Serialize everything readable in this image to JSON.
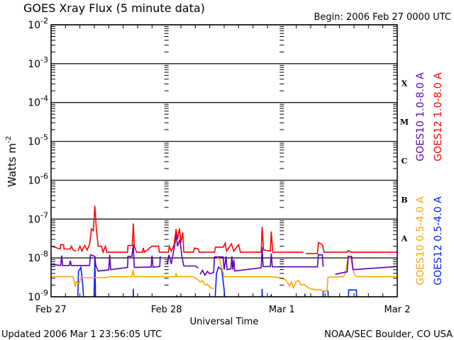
{
  "chart_data": {
    "type": "line",
    "title": "GOES Xray Flux (5 minute data)",
    "begin_label": "Begin:  2006 Feb 27 0000 UTC",
    "xlabel": "Universal Time",
    "ylabel": "Watts m",
    "ylabel_exponent": "-2",
    "y_scale": "log",
    "ylim": [
      1e-09,
      0.01
    ],
    "xlim_hours": [
      0,
      72
    ],
    "grid": "horizontal lines at each decade",
    "x_ticks": [
      {
        "hour": 0,
        "label": "Feb 27"
      },
      {
        "hour": 24,
        "label": "Feb 28"
      },
      {
        "hour": 48,
        "label": "Mar 1"
      },
      {
        "hour": 72,
        "label": "Mar 2"
      }
    ],
    "y_ticks": [
      {
        "value": 0.01,
        "base": "10",
        "exp": "-2"
      },
      {
        "value": 0.001,
        "base": "10",
        "exp": "-3"
      },
      {
        "value": 0.0001,
        "base": "10",
        "exp": "-4"
      },
      {
        "value": 1e-05,
        "base": "10",
        "exp": "-5"
      },
      {
        "value": 1e-06,
        "base": "10",
        "exp": "-6"
      },
      {
        "value": 1e-07,
        "base": "10",
        "exp": "-7"
      },
      {
        "value": 1e-08,
        "base": "10",
        "exp": "-8"
      },
      {
        "value": 1e-09,
        "base": "10",
        "exp": "-9"
      }
    ],
    "flare_classes": [
      {
        "label": "X",
        "low": 0.0001
      },
      {
        "label": "M",
        "low": 1e-05
      },
      {
        "label": "C",
        "low": 1e-06
      },
      {
        "label": "B",
        "low": 1e-07
      },
      {
        "label": "A",
        "low": 1e-08
      }
    ],
    "series": [
      {
        "name": "GOES12 1.0-8.0 A",
        "color": "#ff0000",
        "points": [
          [
            0,
            2e-08
          ],
          [
            1.9,
            1.7e-08
          ],
          [
            2,
            2.2e-08
          ],
          [
            2.6,
            2.2e-08
          ],
          [
            2.7,
            1.7e-08
          ],
          [
            4,
            1.7e-08
          ],
          [
            4.2,
            2e-08
          ],
          [
            4.6,
            1.6e-08
          ],
          [
            5.2,
            1.5e-08
          ],
          null,
          [
            5.6,
            1.5e-08
          ],
          [
            6,
            2e-08
          ],
          [
            6.4,
            1.5e-08
          ],
          [
            7,
            2.1e-08
          ],
          [
            7.5,
            1.6e-08
          ],
          [
            8,
            2.2e-08
          ],
          [
            8.4,
            5.6e-08
          ],
          [
            8.8,
            5e-08
          ],
          [
            9.1,
            2.2e-07
          ],
          [
            9.4,
            6e-08
          ],
          [
            9.8,
            2e-08
          ],
          [
            10.5,
            2e-08
          ],
          [
            10.8,
            1.4e-08
          ],
          [
            11.3,
            2e-08
          ],
          [
            11.6,
            1.4e-08
          ],
          [
            15.9,
            1.4e-08
          ],
          [
            16,
            2.1e-08
          ],
          [
            16.9,
            2.1e-08
          ],
          [
            17.1,
            7.7e-08
          ],
          [
            17.3,
            2e-08
          ],
          [
            17.8,
            1.4e-08
          ],
          [
            19,
            1.4e-08
          ],
          [
            19.2,
            1.8e-08
          ],
          [
            19.4,
            1.4e-08
          ],
          [
            21,
            2e-08
          ],
          [
            22.4,
            2e-08
          ],
          [
            22.5,
            1.4e-08
          ],
          [
            24.4,
            1.4e-08
          ],
          [
            24.6,
            2e-08
          ],
          [
            25,
            1.5e-08
          ],
          [
            25.6,
            2.2e-08
          ],
          [
            26,
            5.5e-08
          ],
          [
            26.3,
            3e-08
          ],
          [
            26.7,
            5.8e-08
          ],
          [
            27,
            2.5e-08
          ],
          [
            27.4,
            4.5e-08
          ],
          [
            27.6,
            1.4e-08
          ],
          [
            29.6,
            1.4e-08
          ],
          [
            29.8,
            1.8e-08
          ],
          [
            30.6,
            1.7e-08
          ],
          [
            30.8,
            1.4e-08
          ],
          [
            34,
            1.4e-08
          ],
          [
            34.2,
            1.9e-08
          ],
          [
            35.8,
            1.9e-08
          ],
          [
            36.2,
            2.4e-08
          ],
          [
            36.5,
            1.5e-08
          ],
          [
            37.5,
            2.3e-08
          ],
          [
            38,
            1.5e-08
          ],
          [
            39,
            2.2e-08
          ],
          [
            39.4,
            1.4e-08
          ],
          [
            43.7,
            1.4e-08
          ],
          [
            43.9,
            6.3e-08
          ],
          [
            44.2,
            1.6e-08
          ],
          [
            45.6,
            1.5e-08
          ],
          [
            45.8,
            4.8e-08
          ],
          [
            46.1,
            1.4e-08
          ],
          [
            52.5,
            1.4e-08
          ],
          null,
          [
            53,
            1.3e-08
          ],
          [
            55.4,
            1.3e-08
          ],
          [
            55.6,
            2.5e-08
          ],
          [
            56.4,
            2.2e-08
          ],
          [
            56.8,
            1.4e-08
          ],
          [
            61.6,
            1.4e-08
          ],
          [
            61.8,
            1.55e-08
          ],
          [
            62.4,
            1.4e-08
          ],
          [
            72,
            1.4e-08
          ]
        ]
      },
      {
        "name": "GOES10 1.0-8.0 A",
        "color": "#5b00b7",
        "points": [
          [
            0,
            6.8e-09
          ],
          [
            2,
            6.4e-09
          ],
          [
            2.2,
            1.15e-08
          ],
          [
            2.4,
            6.4e-09
          ],
          [
            3.8,
            6.4e-09
          ],
          [
            4,
            8.5e-09
          ],
          [
            4.2,
            6.4e-09
          ],
          [
            8,
            6.4e-09
          ],
          [
            8.2,
            1.2e-08
          ],
          [
            8.6,
            1.15e-08
          ],
          [
            9.1,
            1.1e-08
          ],
          [
            9.3,
            6.4e-09
          ],
          [
            9.8,
            4.6e-09
          ],
          [
            12,
            4.9e-09
          ],
          [
            12.2,
            1.2e-08
          ],
          [
            12.4,
            5e-09
          ],
          [
            15.9,
            5.7e-09
          ],
          [
            16,
            1.1e-08
          ],
          [
            16.8,
            1.1e-08
          ],
          [
            17.1,
            2.2e-08
          ],
          [
            17.3,
            5.7e-09
          ],
          [
            20.8,
            5.8e-09
          ],
          [
            21,
            1.15e-08
          ],
          [
            21.2,
            5.8e-09
          ],
          [
            22.6,
            6e-09
          ],
          [
            22.7,
            1.1e-08
          ],
          null,
          [
            24.2,
            7e-09
          ],
          [
            24.5,
            1.2e-08
          ],
          [
            25,
            7e-09
          ],
          [
            25.8,
            2.5e-08
          ],
          [
            26,
            4.1e-08
          ],
          [
            26.3,
            2e-08
          ],
          [
            26.8,
            3e-08
          ],
          [
            27.2,
            1.1e-08
          ],
          [
            27.6,
            6.2e-09
          ],
          [
            30,
            6.2e-09
          ],
          [
            30.6,
            5.5e-09
          ],
          null,
          [
            31,
            3.8e-09
          ],
          [
            31.5,
            4.8e-09
          ],
          [
            32,
            3.6e-09
          ],
          [
            32.5,
            4.5e-09
          ],
          [
            33,
            3.9e-09
          ],
          [
            33.8,
            4.2e-09
          ],
          [
            34,
            1.06e-08
          ],
          [
            35.8,
            1.06e-08
          ],
          [
            36,
            5e-09
          ],
          [
            36.4,
            1.1e-08
          ],
          [
            36.6,
            5e-09
          ],
          [
            37.4,
            5.2e-09
          ],
          [
            37.6,
            1.1e-08
          ],
          [
            37.8,
            5e-09
          ],
          [
            38,
            9e-09
          ],
          [
            38.2,
            4.6e-09
          ],
          [
            43.7,
            5.6e-09
          ],
          [
            43.9,
            1.9e-08
          ],
          [
            44.1,
            6e-09
          ],
          [
            45.6,
            6e-09
          ],
          [
            45.8,
            1.3e-08
          ],
          [
            46,
            5.9e-09
          ],
          [
            55.4,
            5.9e-09
          ],
          [
            55.6,
            1.2e-08
          ],
          [
            56.4,
            1.2e-08
          ],
          [
            56.6,
            5.9e-09
          ],
          null,
          [
            59.1,
            3.8e-09
          ],
          [
            61.6,
            4.4e-09
          ],
          [
            61.8,
            1.1e-08
          ],
          [
            62.5,
            1.1e-08
          ],
          [
            62.8,
            5e-09
          ],
          [
            72,
            6e-09
          ]
        ]
      },
      {
        "name": "GOES10 0.5-4.0 A",
        "color": "#ffa500",
        "points": [
          [
            0,
            3.3e-09
          ],
          [
            4.5,
            3.3e-09
          ],
          [
            4.8,
            2.6e-09
          ],
          [
            5,
            1.8e-09
          ],
          [
            5.3,
            2.5e-09
          ],
          [
            5.8,
            2.1e-09
          ],
          [
            6.2,
            3.1e-09
          ],
          [
            11.5,
            3.1e-09
          ],
          [
            12,
            3.3e-09
          ],
          [
            16.8,
            3.3e-09
          ],
          [
            17,
            5e-09
          ],
          [
            17.3,
            3.3e-09
          ],
          [
            25.9,
            3.3e-09
          ],
          [
            26,
            4e-09
          ],
          [
            26.2,
            3.3e-09
          ],
          [
            29.6,
            3.3e-09
          ],
          [
            30.5,
            2.8e-09
          ],
          [
            31,
            2.4e-09
          ],
          [
            31.5,
            2.6e-09
          ],
          [
            32,
            2e-09
          ],
          [
            32.5,
            2.1e-09
          ],
          [
            33.2,
            1.7e-09
          ],
          [
            33.8,
            1.6e-09
          ],
          null,
          [
            34.2,
            1.1e-08
          ],
          [
            34.8,
            1e-08
          ],
          [
            35.2,
            8e-09
          ],
          [
            35.6,
            5e-09
          ],
          [
            36,
            3.3e-09
          ],
          [
            46,
            3.3e-09
          ],
          [
            48,
            3e-09
          ],
          [
            48.8,
            2.7e-09
          ],
          [
            49.6,
            1.9e-09
          ],
          [
            50,
            2.4e-09
          ],
          [
            50.4,
            1.7e-09
          ],
          [
            51,
            2.5e-09
          ],
          [
            51.5,
            2.6e-09
          ],
          [
            52,
            2e-09
          ],
          [
            52.6,
            2.1e-09
          ],
          [
            53.2,
            1.8e-09
          ],
          [
            54,
            1.6e-09
          ],
          [
            55,
            1.5e-09
          ],
          [
            56,
            1.5e-09
          ],
          [
            56.8,
            1.4e-09
          ],
          [
            57.4,
            1.4e-09
          ],
          [
            57.6,
            3.2e-09
          ],
          [
            60.8,
            3.3e-09
          ],
          [
            61.2,
            4e-09
          ],
          [
            61.8,
            1.1e-08
          ],
          [
            62.4,
            9e-09
          ],
          [
            63,
            4e-09
          ],
          [
            63.5,
            3.3e-09
          ],
          [
            72,
            3.3e-09
          ]
        ]
      },
      {
        "name": "GOES12 0.5-4.0 A",
        "color": "#0022ff",
        "points": [
          [
            0,
            5e-10
          ],
          [
            5.5,
            5e-10
          ],
          [
            5.7,
            4.5e-09
          ],
          [
            6.2,
            5.7e-09
          ],
          [
            6.6,
            2e-09
          ],
          [
            6.9,
            5e-10
          ],
          [
            8.9,
            5e-10
          ],
          [
            9.1,
            1e-08
          ],
          [
            9.3,
            5e-10
          ],
          [
            17,
            5e-10
          ],
          [
            17.1,
            1.6e-09
          ],
          [
            17.2,
            5e-10
          ],
          [
            26,
            5e-10
          ],
          [
            26.1,
            1.1e-09
          ],
          [
            26.2,
            5e-10
          ],
          [
            34,
            5e-10
          ],
          [
            34.4,
            4e-09
          ],
          [
            34.8,
            5.8e-09
          ],
          [
            35.5,
            5e-09
          ],
          [
            36,
            1.5e-09
          ],
          [
            36.3,
            5e-10
          ],
          [
            43.8,
            5e-10
          ],
          [
            43.9,
            1.6e-09
          ],
          [
            44,
            5e-10
          ],
          [
            45.8,
            1.1e-09
          ],
          [
            45.9,
            5e-10
          ],
          [
            52.7,
            5e-10
          ],
          [
            52.8,
            1.2e-09
          ],
          [
            52.9,
            5e-10
          ],
          [
            56.5,
            5e-10
          ],
          [
            56.6,
            1.4e-09
          ],
          [
            57.6,
            1.4e-09
          ],
          [
            57.7,
            5e-10
          ],
          [
            61.8,
            5e-10
          ],
          [
            61.9,
            1.5e-09
          ],
          [
            63.5,
            1.5e-09
          ],
          [
            63.6,
            5e-10
          ],
          [
            72,
            5e-10
          ]
        ]
      }
    ]
  },
  "footer": {
    "updated": "Updated 2006 Mar  1 23:56:05 UTC",
    "source": "NOAA/SEC Boulder, CO USA"
  }
}
